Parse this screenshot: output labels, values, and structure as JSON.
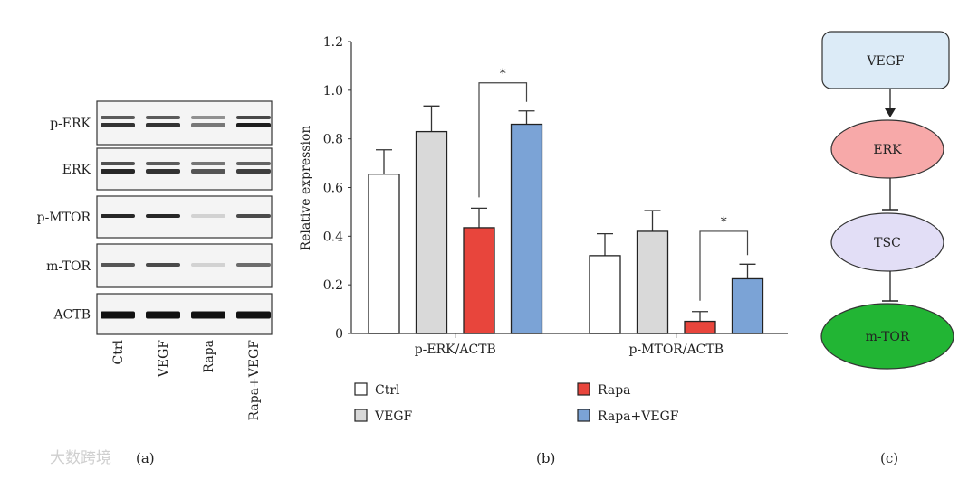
{
  "panel_a": {
    "label": "(a)",
    "rows": [
      "p-ERK",
      "ERK",
      "p-MTOR",
      "m-TOR",
      "ACTB"
    ],
    "lanes": [
      "Ctrl",
      "VEGF",
      "Rapa",
      "Rapa+VEGF"
    ],
    "band_intensity": [
      [
        0.85,
        0.85,
        0.55,
        0.95
      ],
      [
        0.9,
        0.85,
        0.7,
        0.8
      ],
      [
        0.9,
        0.9,
        0.15,
        0.75
      ],
      [
        0.7,
        0.75,
        0.15,
        0.6
      ],
      [
        1,
        1,
        1,
        1
      ]
    ],
    "watermark": "大数跨境"
  },
  "chart_data": {
    "type": "bar",
    "label": "(b)",
    "title": "",
    "xlabel": "",
    "ylabel": "Relative expression",
    "ylim": [
      0,
      1.2
    ],
    "yticks": [
      "0",
      "0.2",
      "0.4",
      "0.6",
      "0.8",
      "1.0",
      "1.2"
    ],
    "categories": [
      "p-ERK/ACTB",
      "p-MTOR/ACTB"
    ],
    "series": [
      {
        "name": "Ctrl",
        "color": "#ffffff",
        "values": [
          0.655,
          0.32
        ],
        "error_upper": [
          0.755,
          0.41
        ]
      },
      {
        "name": "VEGF",
        "color": "#d9d9d9",
        "values": [
          0.83,
          0.42
        ],
        "error_upper": [
          0.935,
          0.505
        ]
      },
      {
        "name": "Rapa",
        "color": "#e8453c",
        "values": [
          0.435,
          0.05
        ],
        "error_upper": [
          0.515,
          0.09
        ]
      },
      {
        "name": "Rapa+VEGF",
        "color": "#7ba3d6",
        "values": [
          0.86,
          0.225
        ],
        "error_upper": [
          0.915,
          0.285
        ]
      }
    ],
    "significance": [
      {
        "category": "p-ERK/ACTB",
        "between": [
          "Rapa",
          "Rapa+VEGF"
        ],
        "mark": "*",
        "level": 1.03
      },
      {
        "category": "p-MTOR/ACTB",
        "between": [
          "Rapa",
          "Rapa+VEGF"
        ],
        "mark": "*",
        "level": 0.42
      }
    ],
    "legend_placement": "bottom"
  },
  "panel_c": {
    "label": "(c)",
    "nodes": [
      {
        "name": "VEGF",
        "color": "#dcebf7"
      },
      {
        "name": "ERK",
        "color": "#f7a9a9"
      },
      {
        "name": "TSC",
        "color": "#e2def6"
      },
      {
        "name": "m-TOR",
        "color": "#22b534"
      }
    ],
    "edges": [
      "activates",
      "inhibits",
      "inhibits"
    ]
  }
}
